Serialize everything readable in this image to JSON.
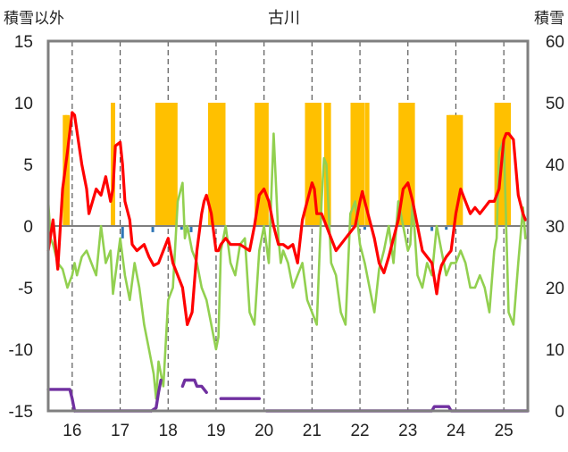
{
  "chart_data": {
    "type": "line",
    "title": "古川",
    "left_axis_title": "積雪以外",
    "right_axis_title": "積雪",
    "ylim": [
      -15,
      15
    ],
    "y_ticks": [
      "15",
      "10",
      "5",
      "0",
      "-5",
      "-10",
      "-15"
    ],
    "y2lim": [
      0,
      60
    ],
    "y2_ticks": [
      "60",
      "50",
      "40",
      "30",
      "20",
      "10",
      "0"
    ],
    "x_domain": [
      15.5,
      25.5
    ],
    "x_ticks": [
      "16",
      "17",
      "18",
      "19",
      "20",
      "21",
      "22",
      "23",
      "24",
      "25"
    ],
    "grid": "vertical dashed at day boundaries",
    "colors": {
      "snowfall_bars": "#FFC000",
      "precip_bars": "#2E75B6",
      "max_temp": "#FF0000",
      "min_temp": "#92D050",
      "snow_depth": "#7030A0",
      "axes": "#7F7F7F",
      "grid": "#595959"
    },
    "series": [
      {
        "key": "snowfall",
        "type": "bar",
        "x": [
          15.85,
          15.9,
          16.85,
          17.78,
          17.83,
          17.88,
          17.93,
          18.0,
          18.05,
          18.1,
          18.15,
          18.88,
          18.93,
          19.0,
          19.05,
          19.1,
          19.15,
          19.85,
          19.9,
          19.95,
          20.0,
          20.05,
          20.9,
          20.95,
          21.0,
          21.05,
          21.1,
          21.15,
          21.3,
          21.35,
          21.85,
          21.9,
          21.95,
          22.0,
          22.05,
          22.15,
          22.85,
          22.9,
          22.95,
          23.0,
          23.05,
          23.1,
          23.85,
          23.9,
          23.95,
          24.0,
          24.05,
          24.1,
          24.85,
          24.9,
          24.95,
          25.0,
          25.05,
          25.1
        ],
        "y": [
          9,
          9,
          10,
          10,
          10,
          10,
          10,
          10,
          10,
          10,
          10,
          10,
          10,
          10,
          10,
          10,
          10,
          10,
          10,
          10,
          10,
          10,
          10,
          10,
          10,
          10,
          10,
          10,
          10,
          10,
          10,
          10,
          10,
          10,
          10,
          10,
          10,
          10,
          10,
          10,
          10,
          10,
          9,
          9,
          9,
          9,
          9,
          9,
          10,
          10,
          10,
          10,
          10,
          10
        ]
      },
      {
        "key": "precipitation",
        "type": "bar",
        "x": [
          17.05,
          17.68,
          18.28,
          18.48,
          22.1,
          23.5,
          23.8
        ],
        "y": [
          -1.0,
          -0.5,
          -0.3,
          -0.5,
          -0.3,
          -0.4,
          -0.3
        ]
      },
      {
        "key": "max_temp",
        "type": "line",
        "x": [
          15.5,
          15.6,
          15.7,
          15.8,
          15.9,
          16.0,
          16.05,
          16.2,
          16.3,
          16.35,
          16.5,
          16.6,
          16.7,
          16.8,
          16.85,
          16.9,
          17.0,
          17.05,
          17.1,
          17.2,
          17.25,
          17.35,
          17.5,
          17.6,
          17.7,
          17.8,
          17.9,
          18.0,
          18.1,
          18.2,
          18.3,
          18.4,
          18.5,
          18.6,
          18.7,
          18.75,
          18.8,
          18.9,
          19.0,
          19.05,
          19.1,
          19.2,
          19.3,
          19.5,
          19.7,
          19.8,
          19.9,
          20.0,
          20.1,
          20.2,
          20.3,
          20.4,
          20.5,
          20.6,
          20.7,
          20.8,
          20.9,
          21.0,
          21.05,
          21.1,
          21.2,
          21.3,
          21.4,
          21.5,
          21.6,
          21.7,
          21.8,
          21.9,
          22.0,
          22.05,
          22.1,
          22.2,
          22.3,
          22.4,
          22.5,
          22.6,
          22.7,
          22.8,
          22.9,
          23.0,
          23.1,
          23.2,
          23.3,
          23.4,
          23.5,
          23.6,
          23.65,
          23.7,
          23.8,
          23.9,
          24.0,
          24.1,
          24.2,
          24.3,
          24.4,
          24.5,
          24.6,
          24.7,
          24.8,
          24.9,
          25.0,
          25.05,
          25.1,
          25.2,
          25.3,
          25.4,
          25.45
        ],
        "y": [
          -2,
          0.5,
          -3.5,
          3,
          6,
          9.2,
          9,
          5,
          3,
          1,
          3,
          2.5,
          4,
          2,
          3,
          6.5,
          6.8,
          5,
          2,
          0.5,
          -1.5,
          -2,
          -1.5,
          -2.5,
          -3.2,
          -3,
          -2,
          -1,
          -3,
          -4,
          -5,
          -8,
          -7,
          -2,
          1,
          2,
          2.5,
          1,
          -2,
          -2,
          -1.5,
          -1,
          -1.5,
          -1.5,
          -2,
          0,
          2.5,
          3,
          2,
          0,
          -1.5,
          -1.5,
          -1.8,
          -1.5,
          -3,
          0.5,
          2,
          3.5,
          3,
          1,
          1,
          0,
          -1,
          -2,
          -1.5,
          -1,
          -0.5,
          0,
          2,
          2.8,
          2,
          0.5,
          -1,
          -3,
          -3.8,
          -2.5,
          -1,
          0.5,
          3,
          3.5,
          2,
          0,
          -2,
          -2.5,
          -3,
          -5.5,
          -4,
          -3.2,
          -2.5,
          -2,
          1,
          3,
          2,
          1,
          1.5,
          1,
          1.5,
          2,
          2,
          3,
          7,
          7.5,
          7.5,
          7,
          2.5,
          1,
          0.5
        ]
      },
      {
        "key": "min_temp",
        "type": "line",
        "x": [
          15.5,
          15.55,
          15.6,
          15.7,
          15.8,
          15.9,
          16.0,
          16.05,
          16.1,
          16.2,
          16.3,
          16.4,
          16.5,
          16.6,
          16.7,
          16.8,
          16.85,
          16.9,
          17.0,
          17.1,
          17.2,
          17.3,
          17.4,
          17.5,
          17.6,
          17.7,
          17.75,
          17.8,
          17.9,
          18.0,
          18.1,
          18.2,
          18.3,
          18.35,
          18.4,
          18.5,
          18.6,
          18.7,
          18.8,
          18.9,
          19.0,
          19.05,
          19.1,
          19.2,
          19.3,
          19.4,
          19.5,
          19.6,
          19.7,
          19.8,
          19.9,
          20.0,
          20.1,
          20.2,
          20.3,
          20.35,
          20.4,
          20.5,
          20.6,
          20.7,
          20.8,
          20.9,
          21.0,
          21.1,
          21.2,
          21.25,
          21.3,
          21.4,
          21.5,
          21.6,
          21.7,
          21.8,
          21.9,
          22.0,
          22.1,
          22.2,
          22.3,
          22.4,
          22.5,
          22.6,
          22.7,
          22.8,
          22.9,
          23.0,
          23.05,
          23.1,
          23.2,
          23.3,
          23.4,
          23.5,
          23.6,
          23.7,
          23.8,
          23.9,
          24.0,
          24.1,
          24.2,
          24.3,
          24.4,
          24.5,
          24.6,
          24.7,
          24.8,
          24.85,
          24.9,
          25.0,
          25.1,
          25.2,
          25.3,
          25.4,
          25.45
        ],
        "y": [
          2,
          -1,
          -1.5,
          -3,
          -3.5,
          -5,
          -4,
          -3,
          -4,
          -2.5,
          -2,
          -3,
          -4,
          0,
          -3,
          -2,
          -5.5,
          -4,
          -1,
          -4,
          -6,
          -3,
          -5,
          -8,
          -10,
          -12,
          -14,
          -11,
          -13,
          -6,
          -5,
          2,
          3.5,
          -1,
          0,
          -2,
          -3,
          -5,
          -6,
          -8,
          -10,
          -9,
          -2,
          0,
          -3,
          -4,
          -1.5,
          -1,
          -7,
          -8,
          -2,
          0,
          -3,
          7.5,
          -1,
          -3,
          -2,
          -3,
          -5,
          -4,
          -3,
          -6,
          -7,
          -8,
          2,
          5.5,
          5,
          -3,
          -4,
          -7,
          -8,
          1,
          2,
          -1.5,
          -3,
          -5,
          -7,
          -3.5,
          -2,
          0,
          -3,
          2,
          0,
          -2,
          -1.5,
          2,
          -4,
          -5,
          -3,
          -4,
          0,
          -2,
          -4,
          -3,
          -3,
          -2,
          -3,
          -5,
          -5,
          -4,
          -5,
          -7,
          -2,
          -1,
          6,
          7,
          -7,
          -8,
          -3,
          1.5,
          -1
        ]
      },
      {
        "key": "snow_depth",
        "type": "line",
        "segments": [
          {
            "x": [
              15.5,
              15.95,
              16.0,
              16.05
            ],
            "y": [
              3.5,
              3.5,
              2.0,
              0
            ]
          },
          {
            "x": [
              16.05,
              17.65
            ],
            "y": [
              0,
              0
            ]
          },
          {
            "x": [
              17.65,
              17.75,
              17.8,
              17.85
            ],
            "y": [
              0,
              0.5,
              3.0,
              5.0
            ]
          },
          {
            "x": [
              18.3,
              18.35,
              18.55,
              18.6,
              18.7,
              18.8
            ],
            "y": [
              4.0,
              5.0,
              5.0,
              4.0,
              4.0,
              3.0
            ]
          },
          {
            "x": [
              19.1,
              19.9
            ],
            "y": [
              2.0,
              2.0
            ]
          },
          {
            "x": [
              20.05,
              23.5,
              23.55,
              23.85,
              23.9,
              25.5
            ],
            "y": [
              0,
              0,
              0.7,
              0.7,
              0,
              0
            ]
          }
        ]
      }
    ]
  }
}
